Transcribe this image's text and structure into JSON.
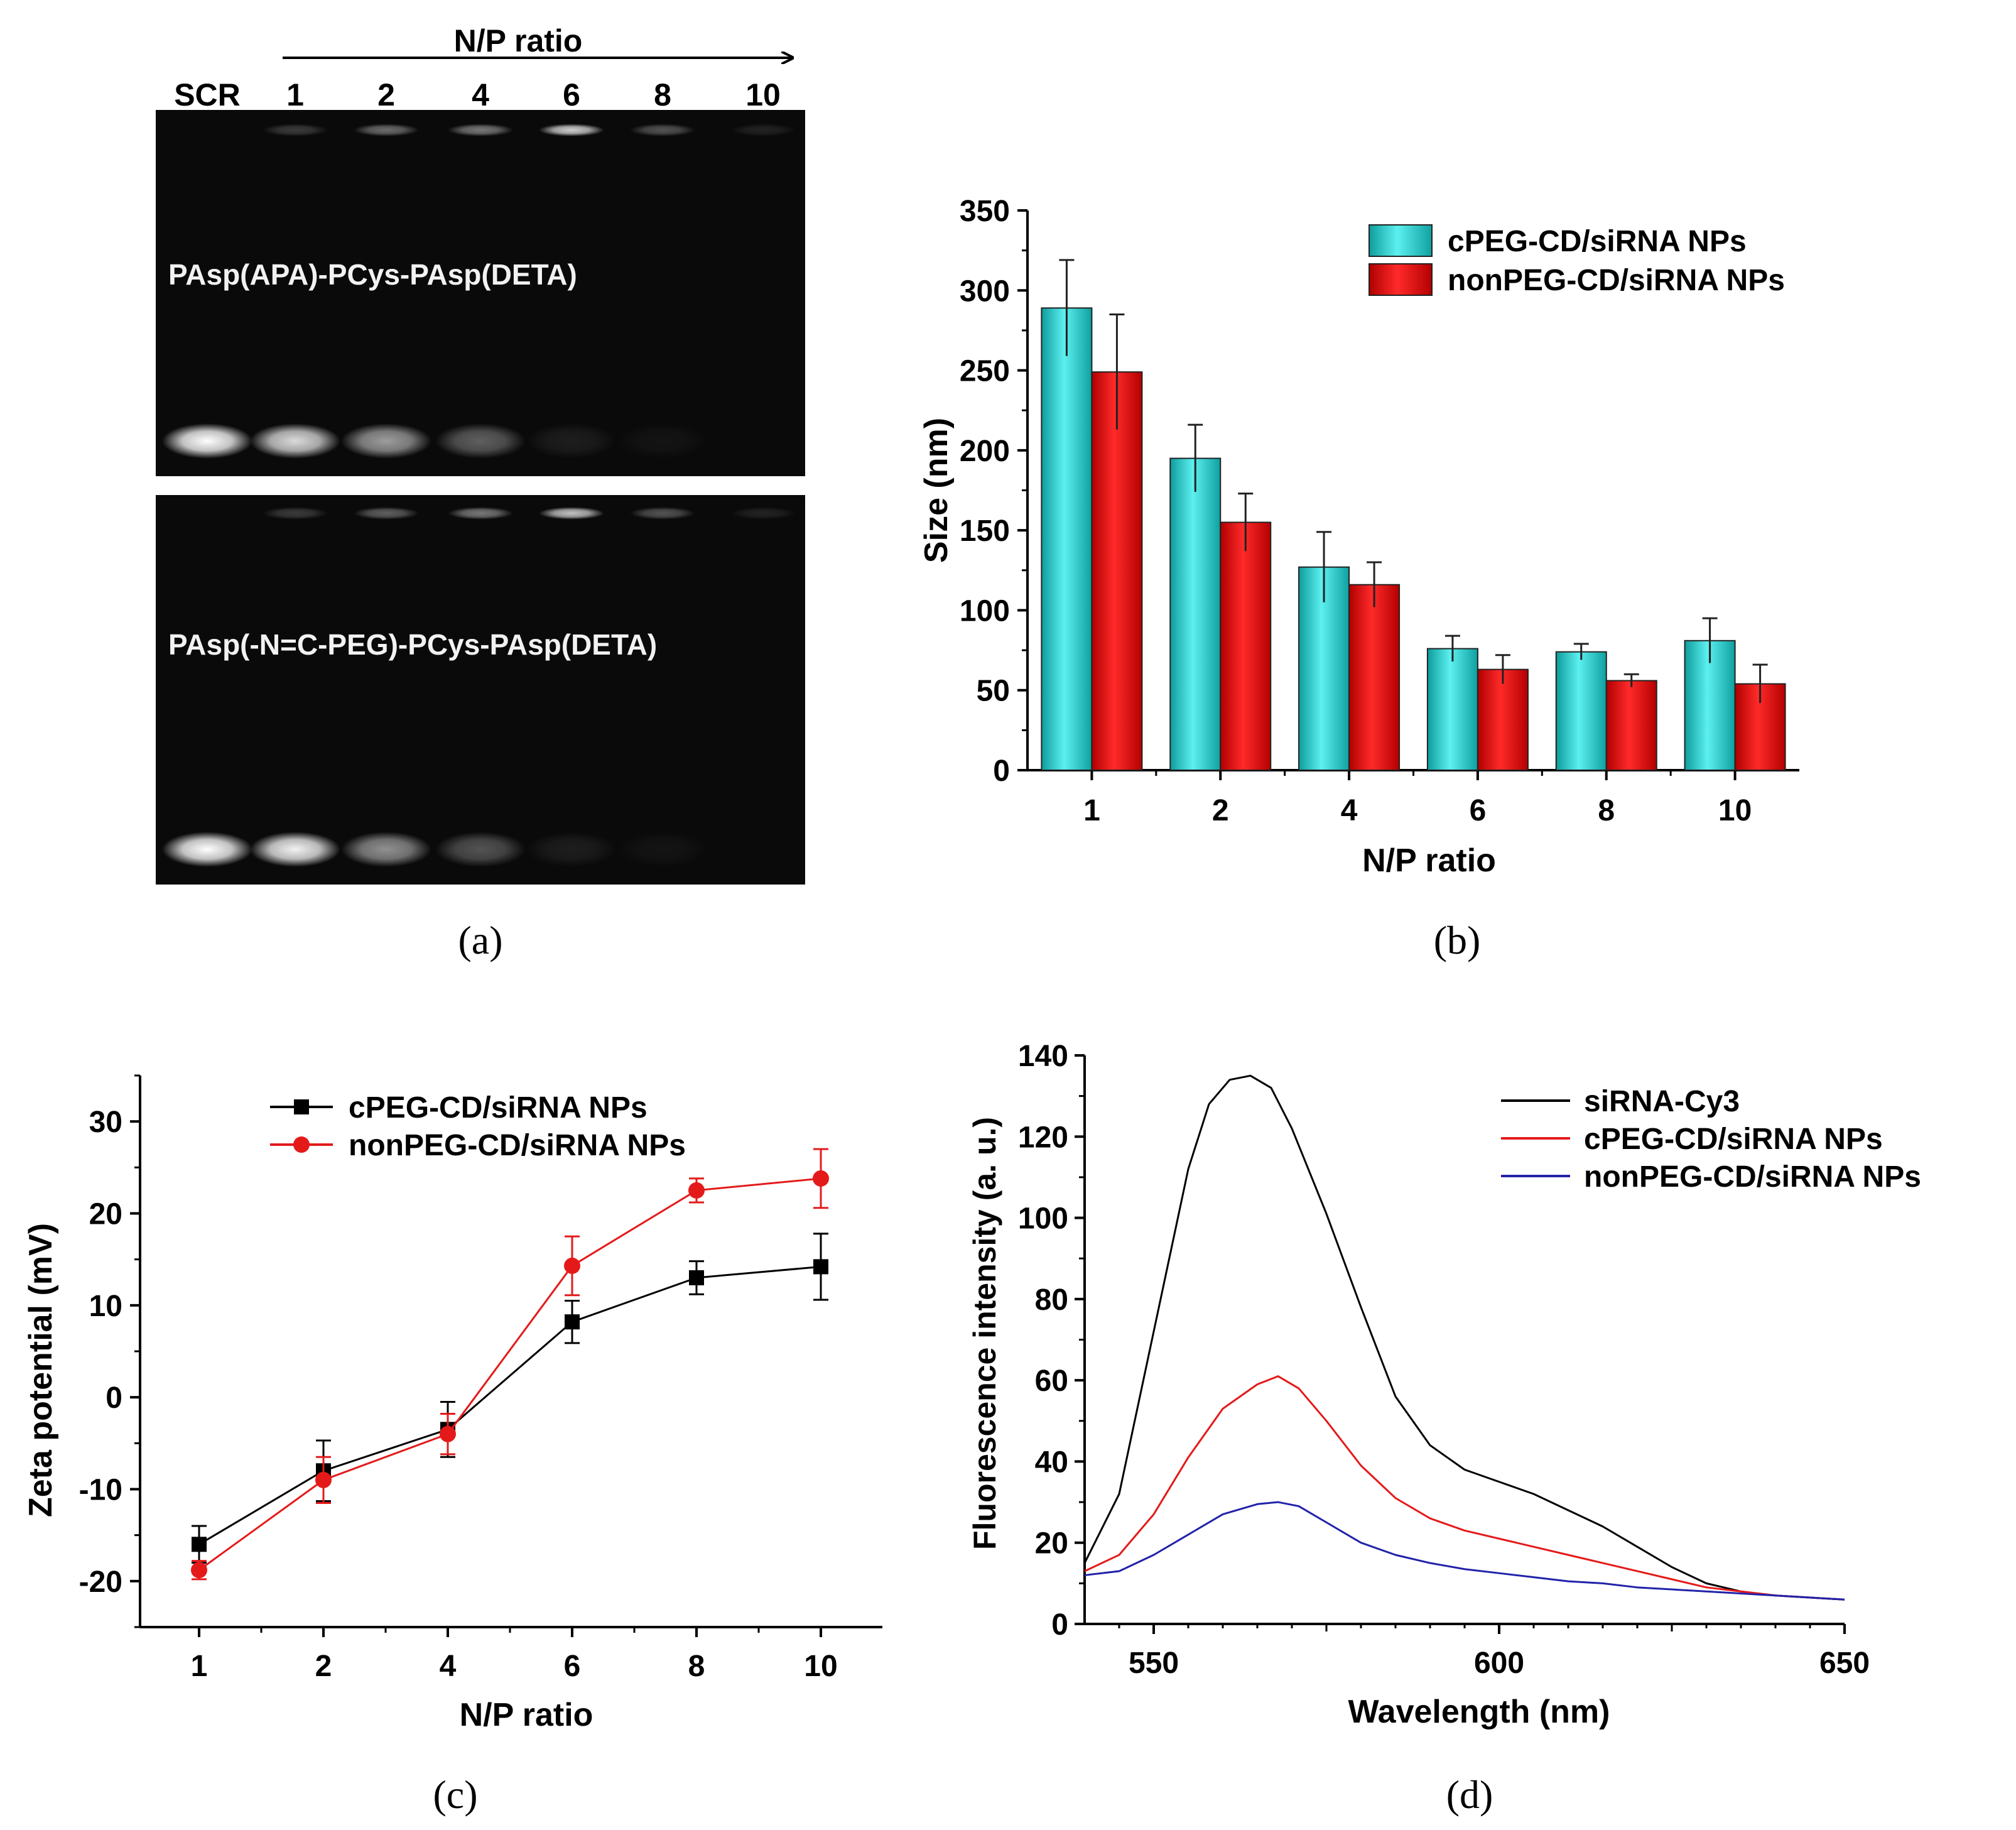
{
  "panels": {
    "a": {
      "label": "(a)",
      "header": "N/P ratio",
      "lanes": [
        "SCR",
        "1",
        "2",
        "4",
        "6",
        "8",
        "10"
      ],
      "gels": [
        {
          "label": "PAsp(APA)-PCys-PAsp(DETA)",
          "free_band_intensity": [
            1.0,
            0.85,
            0.6,
            0.35,
            0.08,
            0.04,
            0.0
          ],
          "well_intensity": [
            0.0,
            0.2,
            0.4,
            0.45,
            0.8,
            0.3,
            0.1
          ]
        },
        {
          "label": "PAsp(-N=C-PEG)-PCys-PAsp(DETA)",
          "free_band_intensity": [
            1.0,
            0.95,
            0.55,
            0.3,
            0.08,
            0.04,
            0.0
          ],
          "well_intensity": [
            0.0,
            0.2,
            0.35,
            0.45,
            0.75,
            0.3,
            0.1
          ]
        }
      ]
    },
    "b": {
      "label": "(b)"
    },
    "c": {
      "label": "(c)"
    },
    "d": {
      "label": "(d)"
    }
  },
  "chart_data": [
    {
      "id": "b",
      "type": "bar",
      "title": "",
      "xlabel": "N/P ratio",
      "ylabel": "Size (nm)",
      "ylim": [
        0,
        350
      ],
      "yticks": [
        "0",
        "50",
        "100",
        "150",
        "200",
        "250",
        "300",
        "350"
      ],
      "categories": [
        "1",
        "2",
        "4",
        "6",
        "8",
        "10"
      ],
      "series": [
        {
          "name": "cPEG-CD/siRNA NPs",
          "color": "#22c9c9",
          "values": [
            289,
            195,
            127,
            76,
            74,
            81
          ],
          "errors": [
            30,
            21,
            22,
            8,
            5,
            14
          ]
        },
        {
          "name": "nonPEG-CD/siRNA NPs",
          "color": "#e41a1a",
          "values": [
            249,
            155,
            116,
            63,
            56,
            54
          ],
          "errors": [
            36,
            18,
            14,
            9,
            4,
            12
          ]
        }
      ],
      "legend": "top-right"
    },
    {
      "id": "c",
      "type": "line",
      "title": "",
      "xlabel": "N/P ratio",
      "ylabel": "Zeta potential (mV)",
      "ylim": [
        -25,
        35
      ],
      "yticks": [
        "-20",
        "-10",
        "0",
        "10",
        "20",
        "30"
      ],
      "categories": [
        "1",
        "2",
        "4",
        "6",
        "8",
        "10"
      ],
      "series": [
        {
          "name": "cPEG-CD/siRNA NPs",
          "color": "#000000",
          "marker": "square",
          "values": [
            -16,
            -8,
            -3.5,
            8.2,
            13,
            14.2
          ],
          "errors": [
            2,
            3.3,
            3,
            2.3,
            1.8,
            3.6
          ]
        },
        {
          "name": "nonPEG-CD/siRNA NPs",
          "color": "#e41a1a",
          "marker": "circle",
          "values": [
            -18.8,
            -9,
            -4,
            14.3,
            22.5,
            23.8
          ],
          "errors": [
            1,
            2.5,
            2.2,
            3.2,
            1.3,
            3.2
          ]
        }
      ],
      "legend": "top-left"
    },
    {
      "id": "d",
      "type": "line",
      "title": "",
      "xlabel": "Wavelength (nm)",
      "ylabel": "Fluorescence intensity (a. u.)",
      "xlim": [
        540,
        650
      ],
      "ylim": [
        0,
        140
      ],
      "xticks": [
        "550",
        "600",
        "650"
      ],
      "yticks": [
        "0",
        "20",
        "40",
        "60",
        "80",
        "100",
        "120",
        "140"
      ],
      "series": [
        {
          "name": "siRNA-Cy3",
          "color": "#000000",
          "x": [
            540,
            545,
            550,
            555,
            558,
            561,
            564,
            567,
            570,
            575,
            580,
            585,
            590,
            595,
            600,
            605,
            610,
            615,
            620,
            625,
            630,
            635,
            640,
            645,
            650
          ],
          "y": [
            15,
            32,
            72,
            112,
            128,
            134,
            135,
            132,
            122,
            101,
            78,
            56,
            44,
            38,
            35,
            32,
            28,
            24,
            19,
            14,
            10,
            8,
            7,
            6.5,
            6
          ]
        },
        {
          "name": "cPEG-CD/siRNA NPs",
          "color": "#e41a1a",
          "x": [
            540,
            545,
            550,
            555,
            560,
            565,
            568,
            571,
            575,
            580,
            585,
            590,
            595,
            600,
            605,
            610,
            615,
            620,
            625,
            630,
            635,
            640,
            645,
            650
          ],
          "y": [
            13,
            17,
            27,
            41,
            53,
            59,
            61,
            58,
            50,
            39,
            31,
            26,
            23,
            21,
            19,
            17,
            15,
            13,
            11,
            9,
            8,
            7,
            6.5,
            6
          ]
        },
        {
          "name": "nonPEG-CD/siRNA NPs",
          "color": "#2222aa",
          "x": [
            540,
            545,
            550,
            555,
            560,
            565,
            568,
            571,
            575,
            580,
            585,
            590,
            595,
            600,
            605,
            610,
            615,
            620,
            625,
            630,
            635,
            640,
            645,
            650
          ],
          "y": [
            12,
            13,
            17,
            22,
            27,
            29.5,
            30,
            29,
            25,
            20,
            17,
            15,
            13.5,
            12.5,
            11.5,
            10.5,
            10,
            9,
            8.5,
            8,
            7.5,
            7,
            6.5,
            6
          ]
        }
      ],
      "legend": "top-right"
    }
  ]
}
